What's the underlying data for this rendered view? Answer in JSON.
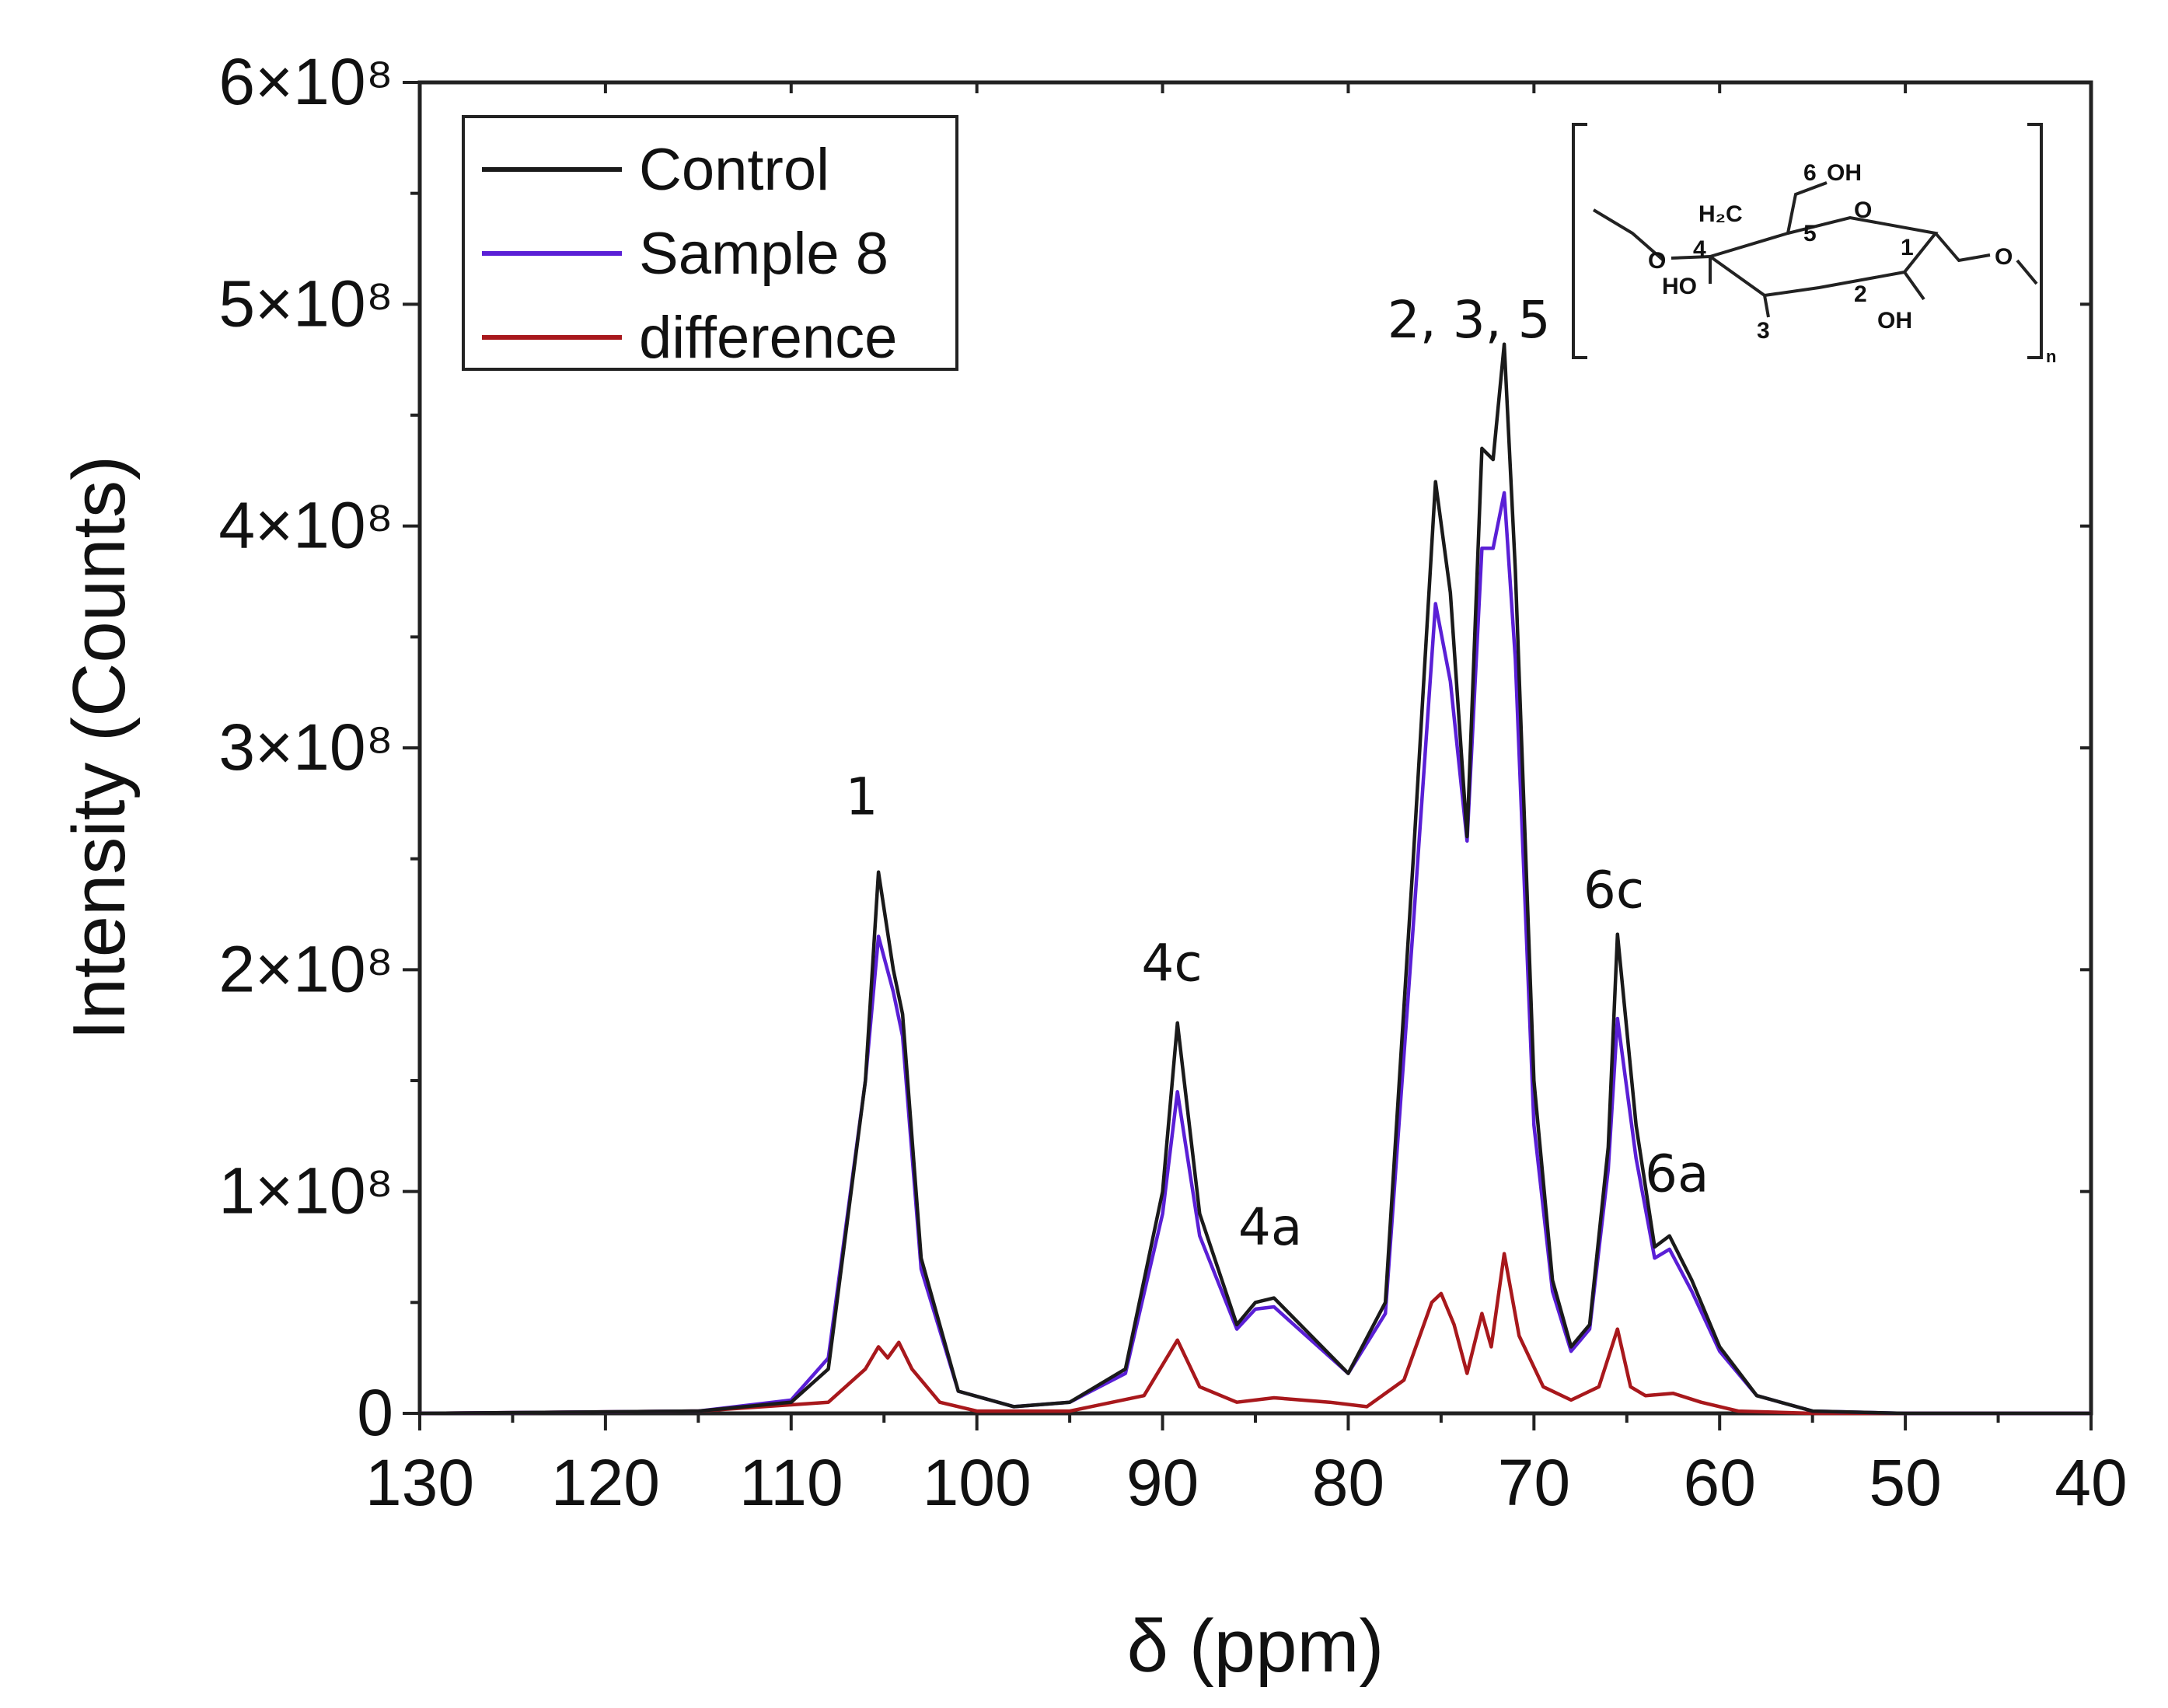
{
  "chart_data": {
    "type": "line",
    "title": "",
    "xlabel": "δ (ppm)",
    "ylabel": "Intensity (Counts)",
    "xlim": [
      130,
      40
    ],
    "ylim": [
      0,
      600000000
    ],
    "x_ticks": [
      130,
      120,
      110,
      100,
      90,
      80,
      70,
      60,
      50,
      40
    ],
    "x_tick_labels": [
      "130",
      "120",
      "110",
      "100",
      "90",
      "80",
      "70",
      "60",
      "50",
      "40"
    ],
    "y_ticks": [
      0,
      100000000,
      200000000,
      300000000,
      400000000,
      500000000,
      600000000
    ],
    "y_tick_labels": [
      "0",
      "1×10⁸",
      "2×10⁸",
      "3×10⁸",
      "4×10⁸",
      "5×10⁸",
      "6×10⁸"
    ],
    "legend_position": "top-left",
    "series": [
      {
        "name": "Control",
        "color": "#1a1a1a",
        "x": [
          130,
          115,
          110,
          108,
          106,
          105.3,
          104.5,
          104,
          103,
          101,
          98,
          95,
          92,
          90,
          89.2,
          88,
          86,
          85,
          84,
          82,
          80,
          78,
          76.5,
          75.3,
          74.5,
          73.6,
          72.8,
          72.2,
          71.6,
          71,
          70,
          69,
          68,
          67,
          66,
          65.5,
          64.5,
          63.5,
          62.7,
          61.5,
          60,
          58,
          55,
          50,
          40
        ],
        "y": [
          0,
          1000000,
          5000000,
          20000000,
          150000000,
          244000000,
          200000000,
          180000000,
          70000000,
          10000000,
          3000000,
          5000000,
          20000000,
          100000000,
          176000000,
          90000000,
          40000000,
          50000000,
          52000000,
          35000000,
          18000000,
          50000000,
          250000000,
          420000000,
          370000000,
          260000000,
          435000000,
          430000000,
          482000000,
          380000000,
          150000000,
          60000000,
          30000000,
          40000000,
          120000000,
          216000000,
          130000000,
          75000000,
          80000000,
          60000000,
          30000000,
          8000000,
          1000000,
          0,
          0
        ]
      },
      {
        "name": "Sample 8",
        "color": "#5a1fd6",
        "x": [
          130,
          115,
          110,
          108,
          106,
          105.3,
          104.5,
          104,
          103,
          101,
          98,
          95,
          92,
          90,
          89.2,
          88,
          86,
          85,
          84,
          82,
          80,
          78,
          76.5,
          75.3,
          74.5,
          73.6,
          72.8,
          72.2,
          71.6,
          71,
          70,
          69,
          68,
          67,
          66,
          65.5,
          64.5,
          63.5,
          62.7,
          61.5,
          60,
          58,
          55,
          50,
          40
        ],
        "y": [
          0,
          1000000,
          6000000,
          25000000,
          150000000,
          215000000,
          190000000,
          170000000,
          65000000,
          10000000,
          3000000,
          5000000,
          18000000,
          90000000,
          145000000,
          80000000,
          38000000,
          47000000,
          48000000,
          33000000,
          18000000,
          45000000,
          220000000,
          365000000,
          330000000,
          258000000,
          390000000,
          390000000,
          415000000,
          340000000,
          130000000,
          55000000,
          28000000,
          38000000,
          110000000,
          178000000,
          115000000,
          70000000,
          74000000,
          55000000,
          28000000,
          8000000,
          1000000,
          0,
          0
        ]
      },
      {
        "name": "difference",
        "color": "#a8181c",
        "x": [
          130,
          115,
          108,
          106,
          105.3,
          104.8,
          104.2,
          103.5,
          102,
          100,
          95,
          91,
          89.2,
          88,
          86,
          84,
          81,
          79,
          77,
          75.5,
          75,
          74.3,
          73.6,
          72.8,
          72.3,
          71.6,
          70.8,
          69.5,
          68,
          66.5,
          65.5,
          64.8,
          64,
          62.5,
          61,
          59,
          55,
          40
        ],
        "y": [
          0,
          1000000,
          5000000,
          20000000,
          30000000,
          25000000,
          32000000,
          20000000,
          5000000,
          1000000,
          1000000,
          8000000,
          33000000,
          12000000,
          5000000,
          7000000,
          5000000,
          3000000,
          15000000,
          50000000,
          54000000,
          40000000,
          18000000,
          45000000,
          30000000,
          72000000,
          35000000,
          12000000,
          6000000,
          12000000,
          38000000,
          12000000,
          8000000,
          9000000,
          5000000,
          1000000,
          0,
          0
        ]
      }
    ],
    "annotations": [
      {
        "text": "1",
        "x": 106.2,
        "y": 270000000
      },
      {
        "text": "4c",
        "x": 89.5,
        "y": 195000000
      },
      {
        "text": "4a",
        "x": 84.2,
        "y": 76000000
      },
      {
        "text": "2, 3, 5",
        "x": 73.5,
        "y": 485000000
      },
      {
        "text": "6c",
        "x": 65.7,
        "y": 228000000
      },
      {
        "text": "6a",
        "x": 62.3,
        "y": 100000000
      }
    ],
    "inset_structure": {
      "labels": [
        "6",
        "OH",
        "H₂C",
        "5",
        "O",
        "1",
        "4",
        "HO",
        "3",
        "2",
        "OH",
        "O",
        "O",
        "n"
      ]
    }
  }
}
